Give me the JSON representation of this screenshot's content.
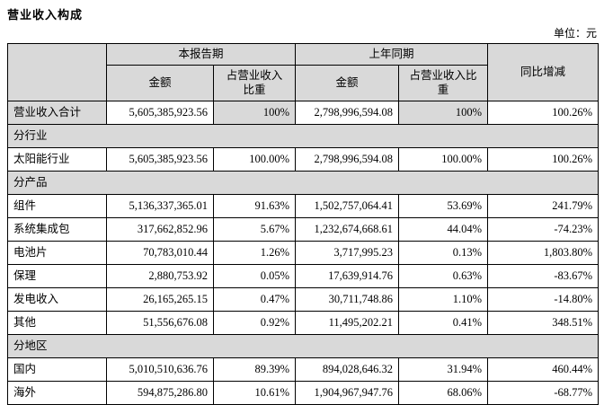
{
  "page": {
    "title": "营业收入构成",
    "unit_label": "单位：元"
  },
  "table": {
    "header": {
      "current_period": "本报告期",
      "prior_period": "上年同期",
      "yoy_change": "同比增减",
      "amount": "金额",
      "share": "占营业收入比重"
    },
    "colors": {
      "header_bg": "#d9d9d9",
      "border": "#000000",
      "text": "#000000"
    },
    "rows": [
      {
        "type": "total",
        "label": "营业收入合计",
        "cur_amount": "5,605,385,923.56",
        "cur_share": "100%",
        "prior_amount": "2,798,996,594.08",
        "prior_share": "100%",
        "yoy": "100.26%"
      },
      {
        "type": "section",
        "label": "分行业"
      },
      {
        "type": "data",
        "label": "太阳能行业",
        "cur_amount": "5,605,385,923.56",
        "cur_share": "100.00%",
        "prior_amount": "2,798,996,594.08",
        "prior_share": "100.00%",
        "yoy": "100.26%"
      },
      {
        "type": "section",
        "label": "分产品"
      },
      {
        "type": "data",
        "label": "组件",
        "cur_amount": "5,136,337,365.01",
        "cur_share": "91.63%",
        "prior_amount": "1,502,757,064.41",
        "prior_share": "53.69%",
        "yoy": "241.79%"
      },
      {
        "type": "data",
        "label": "系统集成包",
        "cur_amount": "317,662,852.96",
        "cur_share": "5.67%",
        "prior_amount": "1,232,674,668.61",
        "prior_share": "44.04%",
        "yoy": "-74.23%"
      },
      {
        "type": "data",
        "label": "电池片",
        "cur_amount": "70,783,010.44",
        "cur_share": "1.26%",
        "prior_amount": "3,717,995.23",
        "prior_share": "0.13%",
        "yoy": "1,803.80%"
      },
      {
        "type": "data",
        "label": "保理",
        "cur_amount": "2,880,753.92",
        "cur_share": "0.05%",
        "prior_amount": "17,639,914.76",
        "prior_share": "0.63%",
        "yoy": "-83.67%"
      },
      {
        "type": "data",
        "label": "发电收入",
        "cur_amount": "26,165,265.15",
        "cur_share": "0.47%",
        "prior_amount": "30,711,748.86",
        "prior_share": "1.10%",
        "yoy": "-14.80%"
      },
      {
        "type": "data",
        "label": "其他",
        "cur_amount": "51,556,676.08",
        "cur_share": "0.92%",
        "prior_amount": "11,495,202.21",
        "prior_share": "0.41%",
        "yoy": "348.51%"
      },
      {
        "type": "section",
        "label": "分地区"
      },
      {
        "type": "data",
        "label": "国内",
        "cur_amount": "5,010,510,636.76",
        "cur_share": "89.39%",
        "prior_amount": "894,028,646.32",
        "prior_share": "31.94%",
        "yoy": "460.44%"
      },
      {
        "type": "data",
        "label": "海外",
        "cur_amount": "594,875,286.80",
        "cur_share": "10.61%",
        "prior_amount": "1,904,967,947.76",
        "prior_share": "68.06%",
        "yoy": "-68.77%"
      }
    ]
  }
}
